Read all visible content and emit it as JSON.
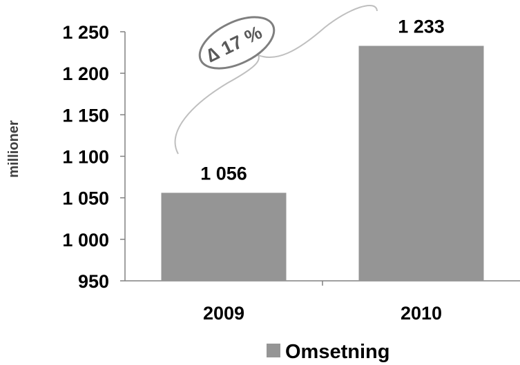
{
  "chart_data": {
    "type": "bar",
    "categories": [
      "2009",
      "2010"
    ],
    "series": [
      {
        "name": "Omsetning",
        "values": [
          1056,
          1233
        ]
      }
    ],
    "data_labels": [
      "1 056",
      "1 233"
    ],
    "ylabel": "millioner",
    "xlabel": "",
    "ylim": [
      950,
      1250
    ],
    "y_ticks": [
      950,
      1000,
      1050,
      1100,
      1150,
      1200,
      1250
    ],
    "y_tick_labels": [
      "950",
      "1 000",
      "1 050",
      "1 100",
      "1 150",
      "1 200",
      "1 250"
    ],
    "grid": false,
    "legend_position": "bottom",
    "bar_color": "#959595",
    "axis_color": "#808080",
    "annotation": {
      "text": "∆ 17 %",
      "bubble_color": "#7f7f7f"
    }
  }
}
